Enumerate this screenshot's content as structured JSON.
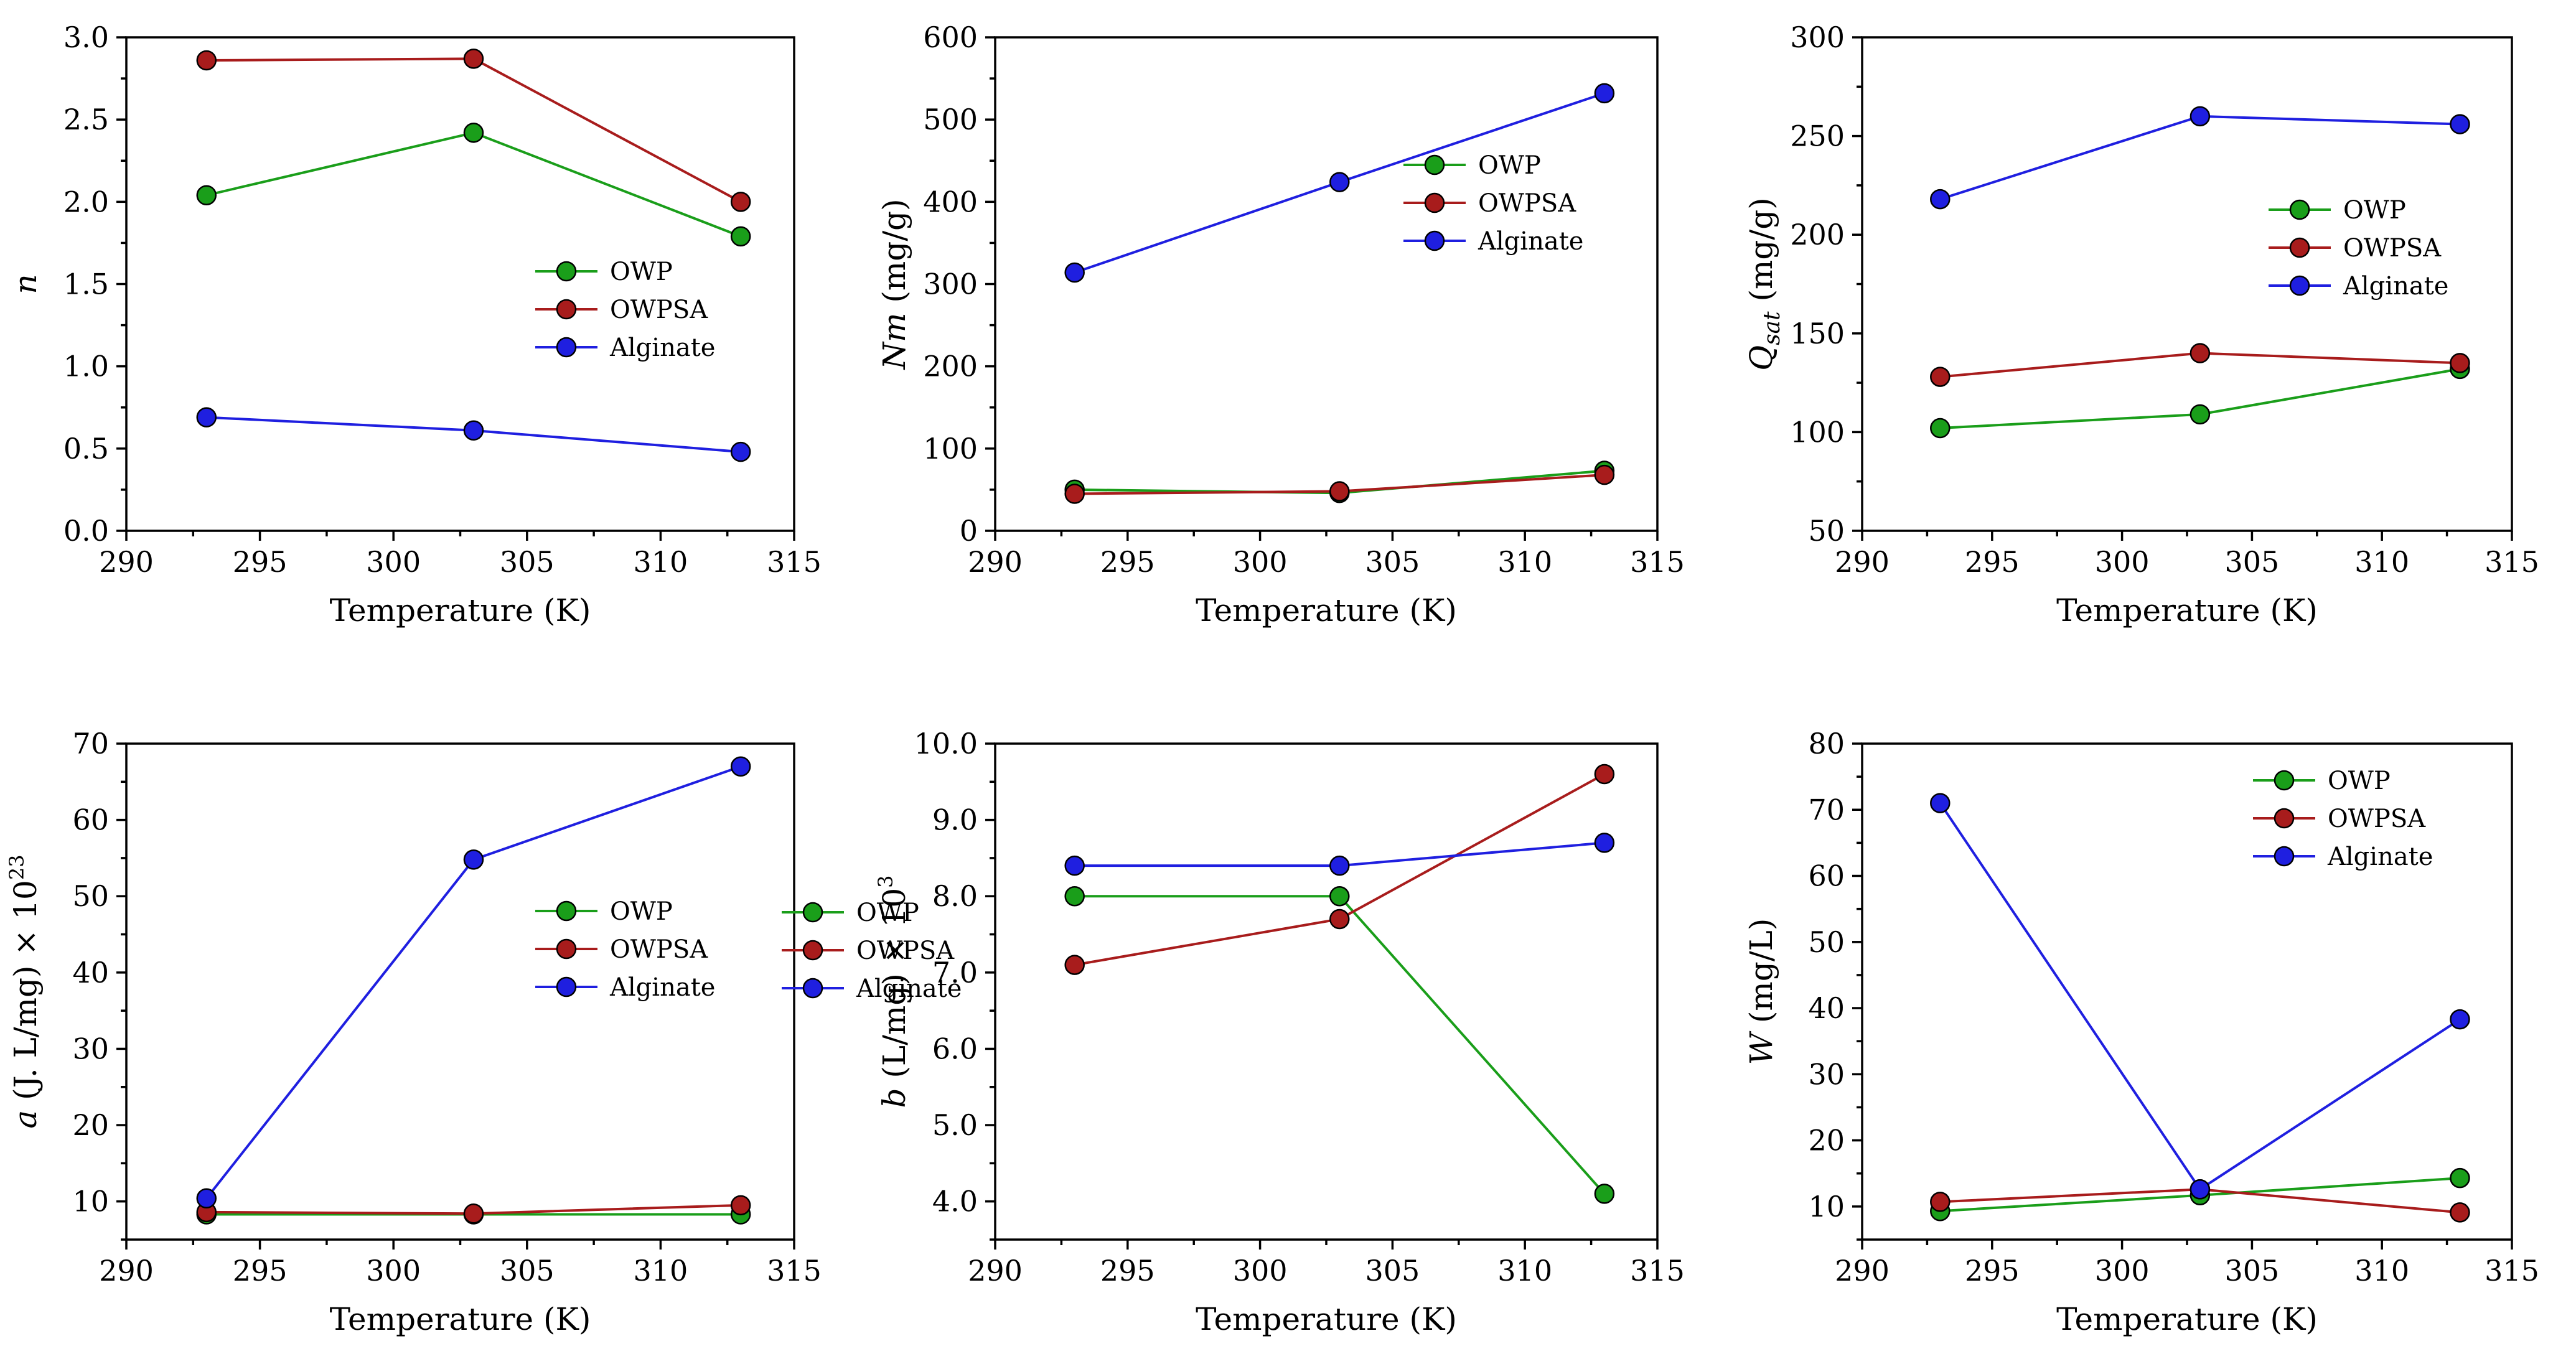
{
  "chart_data": [
    {
      "type": "line",
      "title": "",
      "xlabel": "Temperature (K)",
      "ylabel_main": "n",
      "ylabel_sub": "",
      "ylabel_suffix": "",
      "ylabel_sup": "",
      "xlim": [
        290,
        315
      ],
      "xticks": [
        "290",
        "295",
        "300",
        "305",
        "310",
        "315"
      ],
      "ylim": [
        0,
        3
      ],
      "yticks": [
        "0.0",
        "0.5",
        "1.0",
        "1.5",
        "2.0",
        "2.5",
        "3.0"
      ],
      "x": [
        293,
        303,
        313
      ],
      "legend_position": "center-right",
      "series": [
        {
          "name": "OWP",
          "color": "#1a9e1a",
          "values": [
            2.04,
            2.42,
            1.79
          ]
        },
        {
          "name": "OWPSA",
          "color": "#a81c1c",
          "values": [
            2.86,
            2.87,
            2.0
          ]
        },
        {
          "name": "Alginate",
          "color": "#1f1fe0",
          "values": [
            0.69,
            0.61,
            0.48
          ]
        }
      ]
    },
    {
      "type": "line",
      "title": "",
      "xlabel": "Temperature (K)",
      "ylabel_main": "Nm",
      "ylabel_sub": "",
      "ylabel_suffix": " (mg/g)",
      "ylabel_sup": "",
      "xlim": [
        290,
        315
      ],
      "xticks": [
        "290",
        "295",
        "300",
        "305",
        "310",
        "315"
      ],
      "ylim": [
        0,
        600
      ],
      "yticks": [
        "0",
        "100",
        "200",
        "300",
        "400",
        "500",
        "600"
      ],
      "x": [
        293,
        303,
        313
      ],
      "legend_position": "top-right",
      "series": [
        {
          "name": "OWP",
          "color": "#1a9e1a",
          "values": [
            50,
            46,
            73
          ]
        },
        {
          "name": "OWPSA",
          "color": "#a81c1c",
          "values": [
            45,
            48,
            68
          ]
        },
        {
          "name": "Alginate",
          "color": "#1f1fe0",
          "values": [
            314,
            424,
            532
          ]
        }
      ]
    },
    {
      "type": "line",
      "title": "",
      "xlabel": "Temperature (K)",
      "ylabel_main": "Q",
      "ylabel_sub": "sat",
      "ylabel_suffix": " (mg/g)",
      "ylabel_sup": "",
      "xlim": [
        290,
        315
      ],
      "xticks": [
        "290",
        "295",
        "300",
        "305",
        "310",
        "315"
      ],
      "ylim": [
        50,
        300
      ],
      "yticks": [
        "50",
        "100",
        "150",
        "200",
        "250",
        "300"
      ],
      "x": [
        293,
        303,
        313
      ],
      "legend_position": "top-right",
      "series": [
        {
          "name": "OWP",
          "color": "#1a9e1a",
          "values": [
            102,
            109,
            132
          ]
        },
        {
          "name": "OWPSA",
          "color": "#a81c1c",
          "values": [
            128,
            140,
            135
          ]
        },
        {
          "name": "Alginate",
          "color": "#1f1fe0",
          "values": [
            218,
            260,
            256
          ]
        }
      ]
    },
    {
      "type": "line",
      "title": "",
      "xlabel": "Temperature (K)",
      "ylabel_main": "a",
      "ylabel_sub": "",
      "ylabel_suffix": " (J. L/mg) × 10",
      "ylabel_sup": "23",
      "xlim": [
        290,
        315
      ],
      "xticks": [
        "290",
        "295",
        "300",
        "305",
        "310",
        "315"
      ],
      "ylim": [
        5,
        70
      ],
      "yticks": [
        "10",
        "20",
        "30",
        "40",
        "50",
        "60",
        "70"
      ],
      "x": [
        293,
        303,
        313
      ],
      "legend_position": "center-right",
      "series": [
        {
          "name": "OWP",
          "color": "#1a9e1a",
          "values": [
            8.3,
            8.3,
            8.3
          ]
        },
        {
          "name": "OWPSA",
          "color": "#a81c1c",
          "values": [
            8.6,
            8.4,
            9.5
          ]
        },
        {
          "name": "Alginate",
          "color": "#1f1fe0",
          "values": [
            10.4,
            54.8,
            67.0
          ]
        }
      ]
    },
    {
      "type": "line",
      "title": "",
      "xlabel": "Temperature (K)",
      "ylabel_main": "b",
      "ylabel_sub": "",
      "ylabel_suffix": " (L/mg) × 10",
      "ylabel_sup": "3",
      "xlim": [
        290,
        315
      ],
      "xticks": [
        "290",
        "295",
        "300",
        "305",
        "310",
        "315"
      ],
      "ylim": [
        3.5,
        10
      ],
      "yticks": [
        "4.0",
        "5.0",
        "6.0",
        "7.0",
        "8.0",
        "9.0",
        "10.0"
      ],
      "x": [
        293,
        303,
        313
      ],
      "legend_position": "center-right",
      "series": [
        {
          "name": "OWP",
          "color": "#1a9e1a",
          "values": [
            8.0,
            8.0,
            4.1
          ]
        },
        {
          "name": "OWPSA",
          "color": "#a81c1c",
          "values": [
            7.1,
            7.7,
            9.6
          ]
        },
        {
          "name": "Alginate",
          "color": "#1f1fe0",
          "values": [
            8.4,
            8.4,
            8.7
          ]
        }
      ]
    },
    {
      "type": "line",
      "title": "",
      "xlabel": "Temperature (K)",
      "ylabel_main": "W",
      "ylabel_sub": "",
      "ylabel_suffix": " (mg/L)",
      "ylabel_sup": "",
      "xlim": [
        290,
        315
      ],
      "xticks": [
        "290",
        "295",
        "300",
        "305",
        "310",
        "315"
      ],
      "ylim": [
        5,
        80
      ],
      "yticks": [
        "10",
        "20",
        "30",
        "40",
        "50",
        "60",
        "70",
        "80"
      ],
      "x": [
        293,
        303,
        313
      ],
      "legend_position": "top-right",
      "series": [
        {
          "name": "OWP",
          "color": "#1a9e1a",
          "values": [
            9.3,
            11.7,
            14.3
          ]
        },
        {
          "name": "OWPSA",
          "color": "#a81c1c",
          "values": [
            10.7,
            12.6,
            9.1
          ]
        },
        {
          "name": "Alginate",
          "color": "#1f1fe0",
          "values": [
            71.0,
            12.6,
            38.3
          ]
        }
      ]
    }
  ]
}
